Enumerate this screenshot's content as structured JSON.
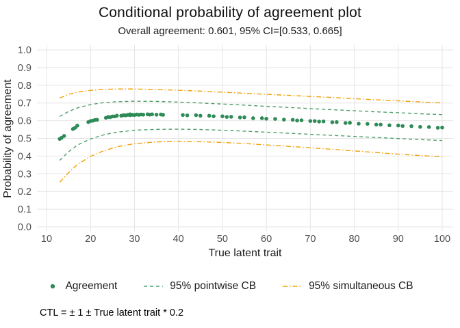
{
  "chart_data": {
    "type": "scatter",
    "title": "Conditional probability of agreement plot",
    "subtitle": "Overall agreement: 0.601, 95% CI=[0.533, 0.665]",
    "xlabel": "True latent trait",
    "ylabel": "Probability of agreement",
    "caption": "CTL = ± 1 ± True latent trait * 0.2",
    "xlim": [
      10,
      100
    ],
    "ylim": [
      0,
      1
    ],
    "grid": true,
    "legend_position": "bottom",
    "x_ticks": [
      10,
      20,
      30,
      40,
      50,
      60,
      70,
      80,
      90,
      100
    ],
    "x_tick_labels": [
      "10",
      "20",
      "30",
      "40",
      "50",
      "60",
      "70",
      "80",
      "90",
      "100"
    ],
    "y_ticks": [
      0,
      0.1,
      0.2,
      0.3,
      0.4,
      0.5,
      0.6,
      0.7,
      0.8,
      0.9,
      1.0
    ],
    "y_tick_labels": [
      "0.0",
      "0.1",
      "0.2",
      "0.3",
      "0.4",
      "0.5",
      "0.6",
      "0.7",
      "0.8",
      "0.9",
      "1.0"
    ],
    "colors": {
      "agreement": "#2e8b57",
      "pointwise": "#4f9d69",
      "simultaneous": "#f2a104",
      "grid": "#e4e4e4",
      "tick_text": "#4d4d4d"
    },
    "legend": [
      {
        "label": "Agreement",
        "type": "point"
      },
      {
        "label": "95% pointwise CB",
        "type": "dashed"
      },
      {
        "label": "95% simultaneous CB",
        "type": "dashdot"
      }
    ],
    "points": [
      [
        13,
        0.497
      ],
      [
        13.4,
        0.503
      ],
      [
        14,
        0.514
      ],
      [
        16,
        0.553
      ],
      [
        16.5,
        0.56
      ],
      [
        17,
        0.572
      ],
      [
        19.5,
        0.592
      ],
      [
        20,
        0.598
      ],
      [
        20.5,
        0.6
      ],
      [
        21,
        0.604
      ],
      [
        21.5,
        0.605
      ],
      [
        23.5,
        0.616
      ],
      [
        24,
        0.621
      ],
      [
        24.5,
        0.62
      ],
      [
        25,
        0.624
      ],
      [
        25.5,
        0.624
      ],
      [
        26,
        0.628
      ],
      [
        27,
        0.628
      ],
      [
        27.5,
        0.631
      ],
      [
        28,
        0.63
      ],
      [
        28.5,
        0.633
      ],
      [
        29,
        0.631
      ],
      [
        29,
        0.636
      ],
      [
        29.5,
        0.633
      ],
      [
        30,
        0.632
      ],
      [
        30.5,
        0.635
      ],
      [
        31,
        0.633
      ],
      [
        31.5,
        0.635
      ],
      [
        32,
        0.634
      ],
      [
        33,
        0.636
      ],
      [
        33.5,
        0.634
      ],
      [
        34,
        0.636
      ],
      [
        35,
        0.634
      ],
      [
        36,
        0.635
      ],
      [
        36.5,
        0.633
      ],
      [
        41,
        0.632
      ],
      [
        42,
        0.63
      ],
      [
        44,
        0.631
      ],
      [
        45,
        0.628
      ],
      [
        47,
        0.628
      ],
      [
        48,
        0.625
      ],
      [
        50,
        0.625
      ],
      [
        51,
        0.621
      ],
      [
        52,
        0.622
      ],
      [
        54,
        0.618
      ],
      [
        55,
        0.619
      ],
      [
        57,
        0.614
      ],
      [
        59,
        0.614
      ],
      [
        60,
        0.611
      ],
      [
        62,
        0.61
      ],
      [
        64,
        0.606
      ],
      [
        66,
        0.605
      ],
      [
        67,
        0.601
      ],
      [
        68,
        0.602
      ],
      [
        70,
        0.598
      ],
      [
        71,
        0.598
      ],
      [
        72,
        0.595
      ],
      [
        73,
        0.596
      ],
      [
        75,
        0.591
      ],
      [
        76,
        0.592
      ],
      [
        78,
        0.587
      ],
      [
        79,
        0.588
      ],
      [
        81,
        0.583
      ],
      [
        83,
        0.582
      ],
      [
        85,
        0.578
      ],
      [
        86,
        0.578
      ],
      [
        88,
        0.574
      ],
      [
        90,
        0.573
      ],
      [
        91,
        0.57
      ],
      [
        93,
        0.569
      ],
      [
        95,
        0.565
      ],
      [
        97,
        0.564
      ],
      [
        99,
        0.56
      ],
      [
        100,
        0.561
      ]
    ],
    "bands": {
      "x": [
        13,
        15,
        17,
        20,
        23,
        26,
        30,
        35,
        40,
        45,
        50,
        55,
        60,
        65,
        70,
        75,
        80,
        85,
        90,
        95,
        100
      ],
      "pointwise_upper": [
        0.624,
        0.652,
        0.672,
        0.691,
        0.702,
        0.707,
        0.71,
        0.709,
        0.705,
        0.7,
        0.694,
        0.688,
        0.681,
        0.675,
        0.668,
        0.662,
        0.656,
        0.65,
        0.645,
        0.639,
        0.634
      ],
      "pointwise_lower": [
        0.376,
        0.424,
        0.462,
        0.497,
        0.52,
        0.535,
        0.546,
        0.551,
        0.552,
        0.55,
        0.546,
        0.541,
        0.535,
        0.529,
        0.523,
        0.517,
        0.511,
        0.505,
        0.499,
        0.493,
        0.488
      ],
      "simultaneous_upper": [
        0.728,
        0.749,
        0.761,
        0.771,
        0.777,
        0.779,
        0.779,
        0.776,
        0.772,
        0.767,
        0.761,
        0.755,
        0.749,
        0.743,
        0.737,
        0.731,
        0.724,
        0.718,
        0.712,
        0.706,
        0.7
      ],
      "simultaneous_lower": [
        0.252,
        0.306,
        0.352,
        0.398,
        0.43,
        0.452,
        0.47,
        0.48,
        0.483,
        0.481,
        0.477,
        0.471,
        0.463,
        0.455,
        0.447,
        0.438,
        0.429,
        0.42,
        0.411,
        0.403,
        0.396
      ]
    }
  }
}
